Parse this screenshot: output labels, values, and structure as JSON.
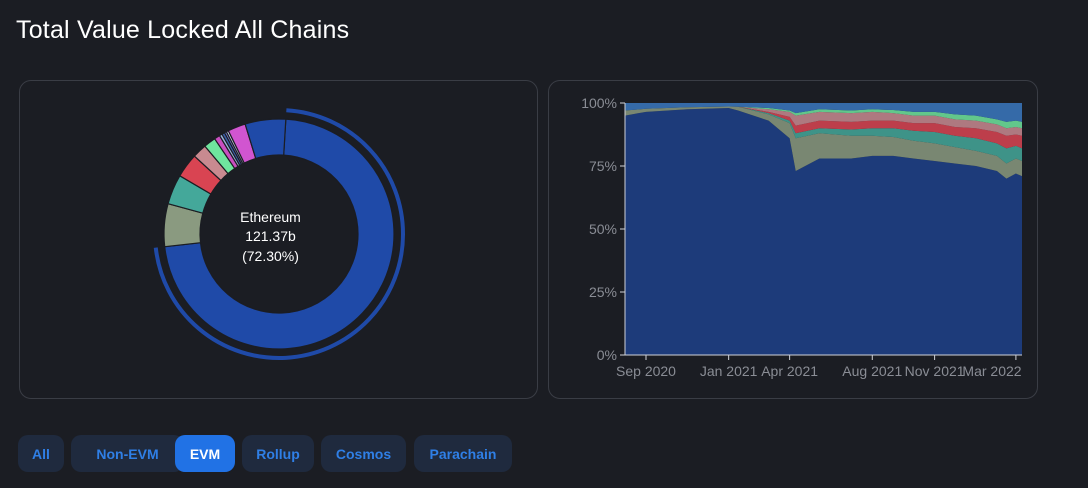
{
  "page": {
    "title": "Total Value Locked All Chains"
  },
  "donut": {
    "center_name": "Ethereum",
    "center_value": "121.37b",
    "center_pct": "(72.30%)"
  },
  "filters": [
    {
      "label": "All",
      "active": false
    },
    {
      "label": "Non-EVM",
      "active": false
    },
    {
      "label": "EVM",
      "active": true
    },
    {
      "label": "Rollup",
      "active": false
    },
    {
      "label": "Cosmos",
      "active": false
    },
    {
      "label": "Parachain",
      "active": false
    }
  ],
  "colors": {
    "ethereum": "#1f4aa8",
    "ethereum_area": "#1d3b7a",
    "accent": "#2172e5"
  },
  "chart_data": [
    {
      "type": "pie",
      "variant": "donut",
      "title": "",
      "slices": [
        {
          "label": "Ethereum",
          "pct": 72.3,
          "value": "121.37b",
          "color": "#1f4aa8"
        },
        {
          "label": "",
          "pct": 6.0,
          "color": "#8a9a80"
        },
        {
          "label": "",
          "pct": 4.2,
          "color": "#44a89a"
        },
        {
          "label": "",
          "pct": 3.4,
          "color": "#d94452"
        },
        {
          "label": "",
          "pct": 2.0,
          "color": "#c88a90"
        },
        {
          "label": "",
          "pct": 1.7,
          "color": "#6fe59e"
        },
        {
          "label": "",
          "pct": 0.8,
          "color": "#c94fc0"
        },
        {
          "label": "",
          "pct": 0.4,
          "color": "#9ab0d8"
        },
        {
          "label": "",
          "pct": 0.4,
          "color": "#3a5ea8"
        },
        {
          "label": "",
          "pct": 0.3,
          "color": "#6f77c8"
        },
        {
          "label": "",
          "pct": 0.3,
          "color": "#cfd3e8"
        },
        {
          "label": "",
          "pct": 2.5,
          "color": "#d155d0"
        },
        {
          "label": "",
          "pct": 5.7,
          "color": "#1f4aa8"
        }
      ]
    },
    {
      "type": "area",
      "variant": "stacked-percent",
      "title": "",
      "xlabel": "",
      "ylabel": "",
      "x_ticks": [
        "Sep 2020",
        "Jan 2021",
        "Apr 2021",
        "Aug 2021",
        "Nov 2021",
        "Mar 2022"
      ],
      "y_ticks": [
        "0%",
        "25%",
        "50%",
        "75%",
        "100%"
      ],
      "ylim": [
        0,
        100
      ],
      "x": [
        "2020-08-01",
        "2020-09-01",
        "2020-11-01",
        "2021-01-01",
        "2021-01-15",
        "2021-03-01",
        "2021-04-01",
        "2021-04-10",
        "2021-05-15",
        "2021-07-01",
        "2021-08-01",
        "2021-09-01",
        "2021-10-01",
        "2021-11-01",
        "2021-12-01",
        "2022-01-01",
        "2022-02-01",
        "2022-02-15",
        "2022-03-01",
        "2022-03-10"
      ],
      "series": [
        {
          "color": "#1d3b7a",
          "values": [
            95,
            96.5,
            97.5,
            98,
            97,
            93,
            86,
            73,
            78,
            78,
            79,
            79,
            78,
            77,
            76,
            75,
            73,
            70,
            72,
            71
          ]
        },
        {
          "color": "#8a9a80",
          "values": [
            2,
            1.2,
            0.8,
            0.6,
            1.5,
            2.5,
            6,
            13,
            10,
            9,
            8,
            7.5,
            7,
            7,
            6.5,
            6,
            6,
            6,
            6,
            6
          ]
        },
        {
          "color": "#44a89a",
          "values": [
            0,
            0,
            0,
            0,
            0,
            0.5,
            1,
            2,
            2,
            2.5,
            3,
            3.5,
            4,
            4.5,
            4.5,
            5,
            5,
            6,
            5,
            5
          ]
        },
        {
          "color": "#d94452",
          "values": [
            0,
            0,
            0,
            0,
            0,
            0.5,
            1.5,
            3,
            3,
            3,
            3,
            3,
            3,
            3.5,
            3.5,
            4,
            4.5,
            5,
            4.5,
            5
          ]
        },
        {
          "color": "#c88a90",
          "values": [
            0,
            0,
            0,
            0,
            0,
            1,
            2,
            4,
            3.5,
            3.5,
            3.5,
            3,
            3,
            3,
            3,
            3,
            3,
            3,
            3,
            3
          ]
        },
        {
          "color": "#6fe59e",
          "values": [
            0,
            0,
            0,
            0,
            0,
            0.5,
            0.5,
            1,
            1,
            1,
            1,
            1.2,
            1.5,
            1.5,
            2,
            2,
            2,
            2.5,
            2.5,
            2.5
          ]
        },
        {
          "color": "#3a78c0",
          "values": [
            3,
            2.3,
            1.7,
            1.4,
            1.5,
            2,
            3,
            4,
            2.5,
            3,
            2.5,
            2.8,
            3.5,
            3.5,
            4.5,
            5,
            6.5,
            7.5,
            7,
            7.5
          ]
        }
      ]
    }
  ]
}
